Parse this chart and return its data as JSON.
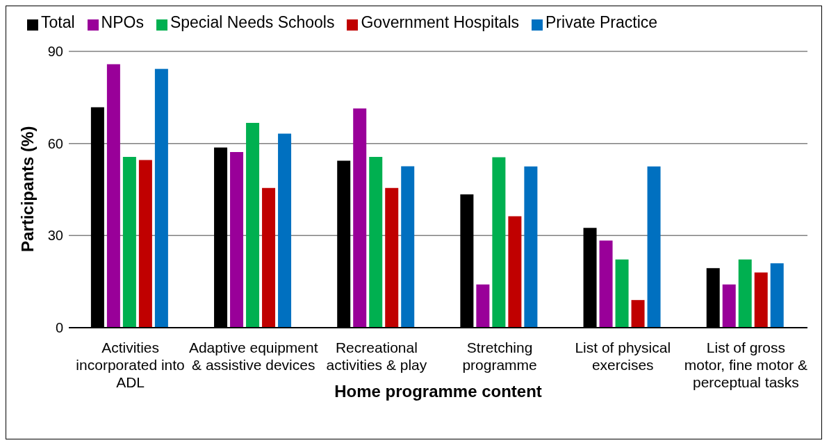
{
  "chart_data": {
    "type": "bar",
    "xlabel": "Home programme content",
    "ylabel": "Participants (%)",
    "categories": [
      "Activities incorporated into ADL",
      "Adaptive equipment & assistive devices",
      "Recreational activities & play",
      "Stretching programme",
      "List of physical exercises",
      "List of gross motor, fine motor & perceptual tasks"
    ],
    "series": [
      {
        "name": "Total",
        "color": "#000000",
        "values": [
          71.8,
          58.7,
          54.4,
          43.4,
          32.5,
          19.4
        ]
      },
      {
        "name": "NPOs",
        "color": "#990099",
        "values": [
          85.8,
          57.2,
          71.4,
          14.1,
          28.4,
          14.1
        ]
      },
      {
        "name": "Special Needs Schools",
        "color": "#00b050",
        "values": [
          55.6,
          66.7,
          55.6,
          55.5,
          22.2,
          22.2
        ]
      },
      {
        "name": "Government Hospitals",
        "color": "#c00000",
        "values": [
          54.6,
          45.5,
          45.5,
          36.3,
          9.0,
          18.0
        ]
      },
      {
        "name": "Private Practice",
        "color": "#0070c0",
        "values": [
          84.3,
          63.2,
          52.6,
          52.5,
          52.5,
          21.0
        ]
      }
    ],
    "ylim": [
      0,
      90
    ],
    "yticks": [
      0,
      30,
      60,
      90
    ],
    "grid": "y",
    "legend": "top left"
  }
}
